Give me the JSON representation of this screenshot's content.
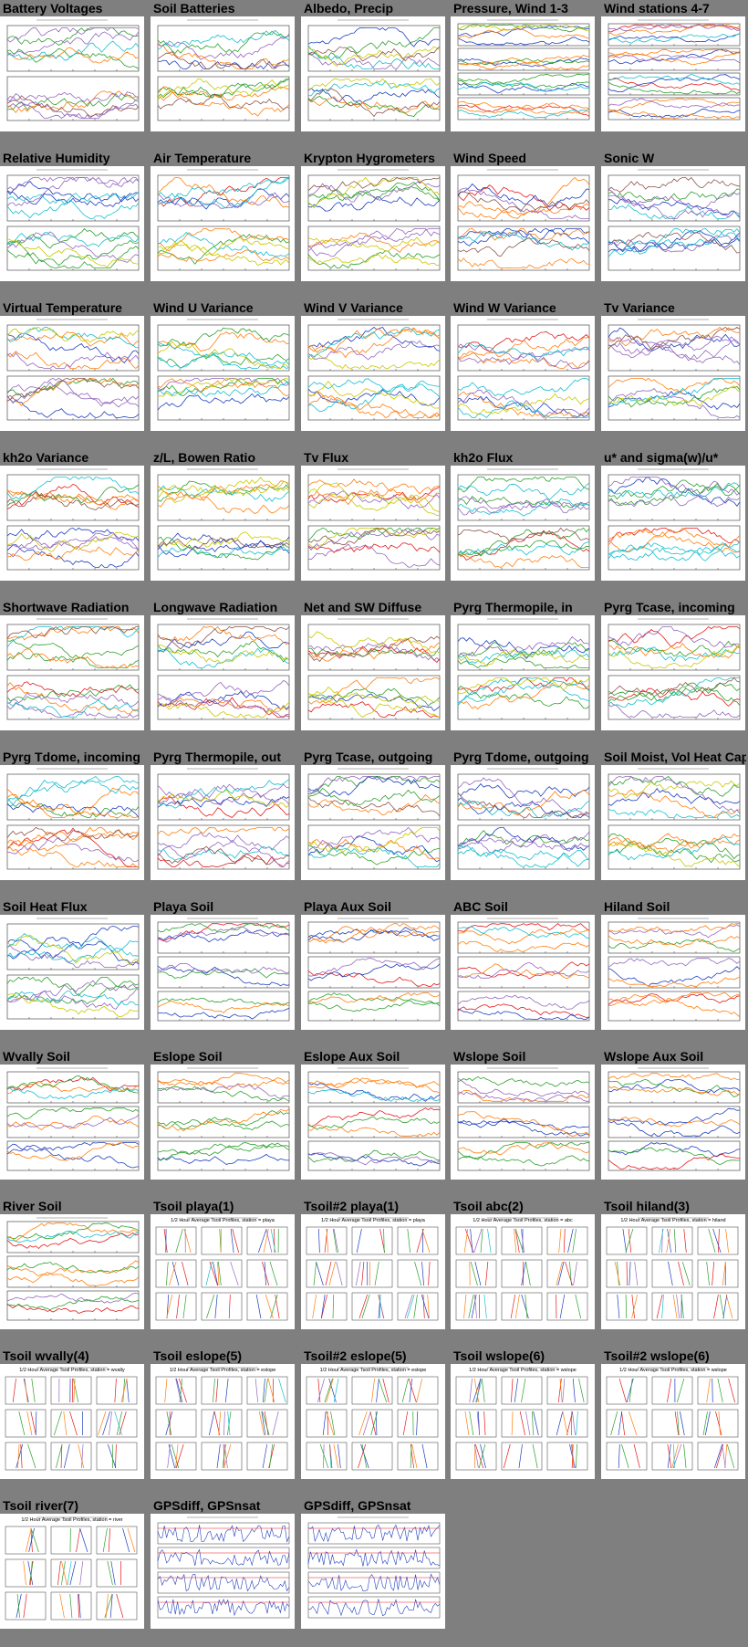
{
  "plots": [
    {
      "label": "Battery Voltages",
      "kind": "dual"
    },
    {
      "label": "Soil Batteries",
      "kind": "dual"
    },
    {
      "label": "Albedo, Precip",
      "kind": "dual"
    },
    {
      "label": "Pressure, Wind 1-3",
      "kind": "quad"
    },
    {
      "label": "Wind stations 4-7",
      "kind": "quad"
    },
    {
      "label": "Relative Humidity",
      "kind": "dual"
    },
    {
      "label": "Air Temperature",
      "kind": "dual"
    },
    {
      "label": "Krypton Hygrometers",
      "kind": "dual"
    },
    {
      "label": "Wind Speed",
      "kind": "dual"
    },
    {
      "label": "Sonic W",
      "kind": "dual"
    },
    {
      "label": "Virtual Temperature",
      "kind": "dual"
    },
    {
      "label": "Wind U Variance",
      "kind": "dual"
    },
    {
      "label": "Wind V Variance",
      "kind": "dual"
    },
    {
      "label": "Wind W Variance",
      "kind": "dual"
    },
    {
      "label": "Tv Variance",
      "kind": "dual"
    },
    {
      "label": "kh2o Variance",
      "kind": "dual"
    },
    {
      "label": "z/L, Bowen Ratio",
      "kind": "dual"
    },
    {
      "label": "Tv Flux",
      "kind": "dual"
    },
    {
      "label": "kh2o Flux",
      "kind": "dual"
    },
    {
      "label": "u* and sigma(w)/u*",
      "kind": "dual"
    },
    {
      "label": "Shortwave Radiation",
      "kind": "dual"
    },
    {
      "label": "Longwave Radiation",
      "kind": "dual"
    },
    {
      "label": "Net and SW Diffuse",
      "kind": "dual"
    },
    {
      "label": "Pyrg Thermopile, in",
      "kind": "dual"
    },
    {
      "label": "Pyrg Tcase, incoming",
      "kind": "dual"
    },
    {
      "label": "Pyrg Tdome, incoming",
      "kind": "dual"
    },
    {
      "label": "Pyrg Thermopile, out",
      "kind": "dual"
    },
    {
      "label": "Pyrg Tcase, outgoing",
      "kind": "dual"
    },
    {
      "label": "Pyrg Tdome, outgoing",
      "kind": "dual"
    },
    {
      "label": "Soil Moist, Vol Heat Cap",
      "kind": "dual"
    },
    {
      "label": "Soil Heat Flux",
      "kind": "dual"
    },
    {
      "label": "Playa Soil",
      "kind": "triple"
    },
    {
      "label": "Playa Aux Soil",
      "kind": "triple"
    },
    {
      "label": "ABC Soil",
      "kind": "triple"
    },
    {
      "label": "Hiland Soil",
      "kind": "triple"
    },
    {
      "label": "Wvally Soil",
      "kind": "triple"
    },
    {
      "label": "Eslope Soil",
      "kind": "triple"
    },
    {
      "label": "Eslope Aux Soil",
      "kind": "triple"
    },
    {
      "label": "Wslope Soil",
      "kind": "triple"
    },
    {
      "label": "Wslope Aux Soil",
      "kind": "triple"
    },
    {
      "label": "River Soil",
      "kind": "triple"
    },
    {
      "label": "Tsoil playa(1)",
      "kind": "profile",
      "heading": "1/2 Hour Average Tsoil Profiles, station = playa"
    },
    {
      "label": "Tsoil#2 playa(1)",
      "kind": "profile",
      "heading": "1/2 Hour Average Tsoil Profiles, station = playa"
    },
    {
      "label": "Tsoil abc(2)",
      "kind": "profile",
      "heading": "1/2 Hour Average Tsoil Profiles, station = abc"
    },
    {
      "label": "Tsoil hiland(3)",
      "kind": "profile",
      "heading": "1/2 Hour Average Tsoil Profiles, station = hiland"
    },
    {
      "label": "Tsoil wvally(4)",
      "kind": "profile",
      "heading": "1/2 Hour Average Tsoil Profiles, station = wvally"
    },
    {
      "label": "Tsoil eslope(5)",
      "kind": "profile",
      "heading": "1/2 Hour Average Tsoil Profiles, station = eslope"
    },
    {
      "label": "Tsoil#2 eslope(5)",
      "kind": "profile",
      "heading": "1/2 Hour Average Tsoil Profiles, station = eslope"
    },
    {
      "label": "Tsoil wslope(6)",
      "kind": "profile",
      "heading": "1/2 Hour Average Tsoil Profiles, station = wslope"
    },
    {
      "label": "Tsoil#2 wslope(6)",
      "kind": "profile",
      "heading": "1/2 Hour Average Tsoil Profiles, station = wslope"
    },
    {
      "label": "Tsoil river(7)",
      "kind": "profile",
      "heading": "1/2 Hour Average Tsoil Profiles, station = river"
    },
    {
      "label": "GPSdiff, GPSnsat",
      "kind": "gps"
    },
    {
      "label": "GPSdiff, GPSnsat",
      "kind": "gps"
    }
  ],
  "colors": {
    "background": "#7f7f7f",
    "thumb_bg": "#ffffff",
    "series": [
      "#e41a1c",
      "#1f3fbf",
      "#2ca02c",
      "#ff7f0e",
      "#9467bd",
      "#17becf",
      "#c8c800",
      "#8c564b",
      "#e377c2",
      "#7f7f7f"
    ]
  }
}
